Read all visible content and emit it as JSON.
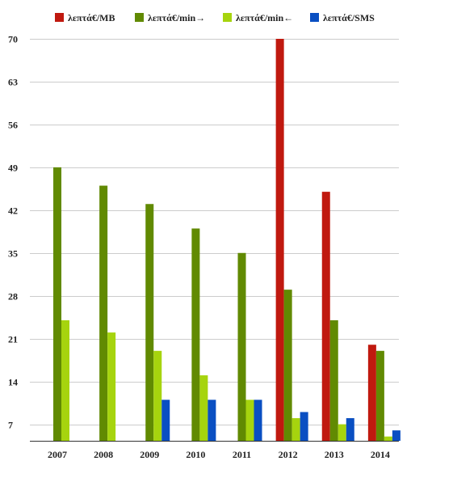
{
  "chart_data": {
    "type": "bar",
    "categories": [
      "2007",
      "2008",
      "2009",
      "2010",
      "2011",
      "2012",
      "2013",
      "2014"
    ],
    "series": [
      {
        "name": "λεπτά€/MB",
        "color": "#c0190f",
        "values": [
          null,
          null,
          null,
          null,
          null,
          70,
          45,
          20
        ]
      },
      {
        "name": "λεπτά€/min→",
        "color": "#618a02",
        "values": [
          49,
          46,
          43,
          39,
          35,
          29,
          24,
          19
        ]
      },
      {
        "name": "λεπτά€/min←",
        "color": "#a6d40e",
        "values": [
          24,
          22,
          19,
          15,
          11,
          8,
          7,
          5
        ]
      },
      {
        "name": "λεπτά€/SMS",
        "color": "#0a4fc2",
        "values": [
          null,
          null,
          11,
          11,
          11,
          9,
          8,
          6
        ]
      }
    ],
    "y_ticks": [
      7,
      14,
      21,
      28,
      35,
      42,
      49,
      56,
      63,
      70
    ],
    "ylim": [
      4.3,
      70
    ],
    "grid": true,
    "legend_position": "top",
    "title": "",
    "xlabel": "",
    "ylabel": ""
  }
}
